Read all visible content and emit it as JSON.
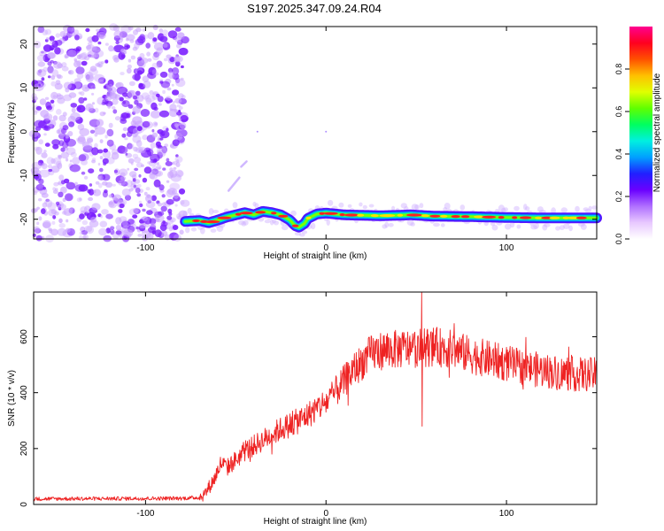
{
  "title": "S197.2025.347.09.24.R04",
  "chart_data": [
    {
      "type": "heatmap",
      "xlabel": "Height of straight line (km)",
      "ylabel": "Frequency (Hz)",
      "xlim": [
        -162,
        150
      ],
      "ylim": [
        -24.5,
        24
      ],
      "xticks": [
        -100,
        0,
        100
      ],
      "yticks": [
        20,
        10,
        0,
        -10,
        -20
      ],
      "colorbar": {
        "label": "Normalized spectral amplitude",
        "range": [
          0,
          1
        ],
        "ticks": [
          "0.0",
          "0.2",
          "0.4",
          "0.6",
          "0.8"
        ],
        "tick_values": [
          0,
          0.2,
          0.4,
          0.6,
          0.8
        ],
        "colors": [
          "#ffffff",
          "#e8c8ff",
          "#b070ff",
          "#6a00ff",
          "#2020ff",
          "#00a0ff",
          "#00f0e0",
          "#00ff60",
          "#60ff00",
          "#e0ff00",
          "#ffc000",
          "#ff5000",
          "#ff0020",
          "#ff0090"
        ]
      },
      "signal_line": {
        "x": [
          -78,
          -70,
          -65,
          -60,
          -55,
          -50,
          -45,
          -40,
          -35,
          -30,
          -25,
          -20,
          -17,
          -15,
          -12,
          -10,
          -5,
          0,
          5,
          10,
          20,
          30,
          40,
          47,
          60,
          80,
          100,
          120,
          150
        ],
        "freq": [
          -20.5,
          -20.3,
          -20.8,
          -20.2,
          -19.5,
          -19.0,
          -18.5,
          -19.0,
          -18.2,
          -18.5,
          -19.0,
          -20.2,
          -21.5,
          -21.8,
          -21.0,
          -19.8,
          -18.8,
          -18.6,
          -18.8,
          -19.0,
          -19.1,
          -19.2,
          -19.1,
          -19.0,
          -19.3,
          -19.4,
          -19.6,
          -19.7,
          -19.7
        ]
      },
      "noise_region": {
        "x_range": [
          -162,
          -78
        ],
        "freq_range": [
          -24.5,
          24
        ]
      },
      "curve_segments": [
        {
          "x": [
            -54,
            -48
          ],
          "freq": [
            -13.5,
            -10.5
          ]
        },
        {
          "x": [
            -47,
            -44
          ],
          "freq": [
            -8.0,
            -6.8
          ]
        }
      ],
      "dots": [
        {
          "x": -38,
          "freq": 0.0
        },
        {
          "x": 0,
          "freq": 0.0
        }
      ]
    },
    {
      "type": "line",
      "xlabel": "Height of straight line (km)",
      "ylabel": "SNR (10 * v/v)",
      "xlim": [
        -162,
        150
      ],
      "ylim": [
        0,
        760
      ],
      "xticks": [
        -100,
        0,
        100
      ],
      "yticks": [
        0,
        200,
        400,
        600
      ],
      "color": "#ee2222",
      "envelope": {
        "x": [
          -162,
          -80,
          -70,
          -67,
          -62,
          -58,
          -55,
          -50,
          -45,
          -40,
          -35,
          -30,
          -25,
          -20,
          -15,
          -10,
          -5,
          0,
          5,
          10,
          15,
          20,
          25,
          30,
          40,
          50,
          60,
          70,
          80,
          90,
          100,
          110,
          120,
          130,
          140,
          150
        ],
        "y": [
          20,
          22,
          25,
          40,
          90,
          150,
          130,
          160,
          190,
          210,
          230,
          250,
          270,
          285,
          300,
          320,
          345,
          365,
          400,
          440,
          480,
          510,
          540,
          550,
          555,
          560,
          565,
          555,
          535,
          520,
          505,
          490,
          480,
          470,
          465,
          465
        ]
      },
      "spike": {
        "x": 53,
        "y_max": 760,
        "y_min": 280
      }
    }
  ]
}
